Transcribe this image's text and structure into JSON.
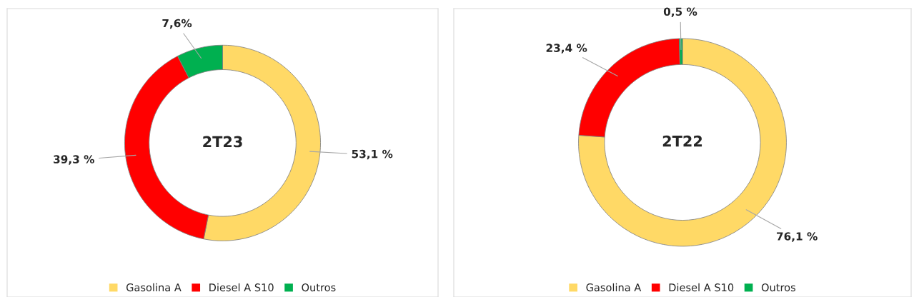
{
  "chart_data": [
    {
      "type": "donut",
      "title": "2T23",
      "categories": [
        "Gasolina A",
        "Diesel A S10",
        "Outros"
      ],
      "values": [
        53.1,
        39.3,
        7.6
      ],
      "colors": [
        "#ffd966",
        "#ff0000",
        "#00b050"
      ],
      "value_labels": [
        "53,1 %",
        "39,3 %",
        "7,6%"
      ],
      "legend": "bottom"
    },
    {
      "type": "donut",
      "title": "2T22",
      "categories": [
        "Gasolina A",
        "Diesel A S10",
        "Outros"
      ],
      "values": [
        76.1,
        23.4,
        0.5
      ],
      "colors": [
        "#ffd966",
        "#ff0000",
        "#00b050"
      ],
      "value_labels": [
        "76,1 %",
        "23,4 %",
        "0,5 %"
      ],
      "legend": "bottom"
    }
  ]
}
